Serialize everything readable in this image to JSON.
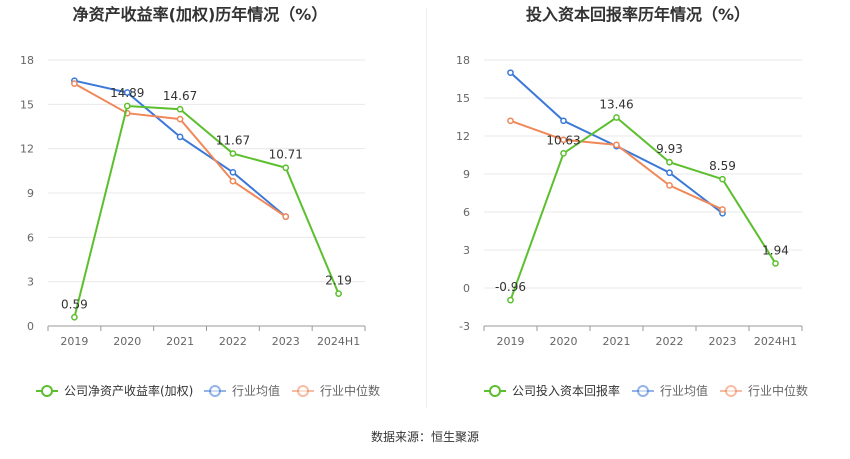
{
  "source_label": "数据来源：恒生聚源",
  "colors": {
    "company": "#5cbf2e",
    "industry_avg": "#3c78d8",
    "industry_median": "#f0885a",
    "grid": "#e8e8e8",
    "axis": "#666666",
    "text": "#333333"
  },
  "chart_data": [
    {
      "type": "line",
      "title": "净资产收益率(加权)历年情况（%）",
      "categories": [
        "2019",
        "2020",
        "2021",
        "2022",
        "2023",
        "2024H1"
      ],
      "ylim": [
        0,
        18
      ],
      "yticks": [
        0,
        3,
        6,
        9,
        12,
        15,
        18
      ],
      "grid": true,
      "legend_position": "bottom",
      "series": [
        {
          "name": "公司净资产收益率(加权)",
          "color_key": "company",
          "values": [
            0.59,
            14.89,
            14.67,
            11.67,
            10.71,
            2.19
          ],
          "labels": true
        },
        {
          "name": "行业均值",
          "color_key": "industry_avg",
          "values": [
            16.6,
            15.8,
            12.8,
            10.4,
            7.4,
            null
          ],
          "labels": false
        },
        {
          "name": "行业中位数",
          "color_key": "industry_median",
          "values": [
            16.4,
            14.4,
            14.0,
            9.8,
            7.4,
            null
          ],
          "labels": false
        }
      ]
    },
    {
      "type": "line",
      "title": "投入资本回报率历年情况（%）",
      "categories": [
        "2019",
        "2020",
        "2021",
        "2022",
        "2023",
        "2024H1"
      ],
      "ylim": [
        -3,
        18
      ],
      "yticks": [
        -3,
        0,
        3,
        6,
        9,
        12,
        15,
        18
      ],
      "grid": true,
      "legend_position": "bottom",
      "series": [
        {
          "name": "公司投入资本回报率",
          "color_key": "company",
          "values": [
            -0.96,
            10.63,
            13.46,
            9.93,
            8.59,
            1.94
          ],
          "labels": true
        },
        {
          "name": "行业均值",
          "color_key": "industry_avg",
          "values": [
            17.0,
            13.2,
            11.2,
            9.1,
            5.9,
            null
          ],
          "labels": false
        },
        {
          "name": "行业中位数",
          "color_key": "industry_median",
          "values": [
            13.2,
            11.7,
            11.3,
            8.1,
            6.2,
            null
          ],
          "labels": false
        }
      ]
    }
  ]
}
